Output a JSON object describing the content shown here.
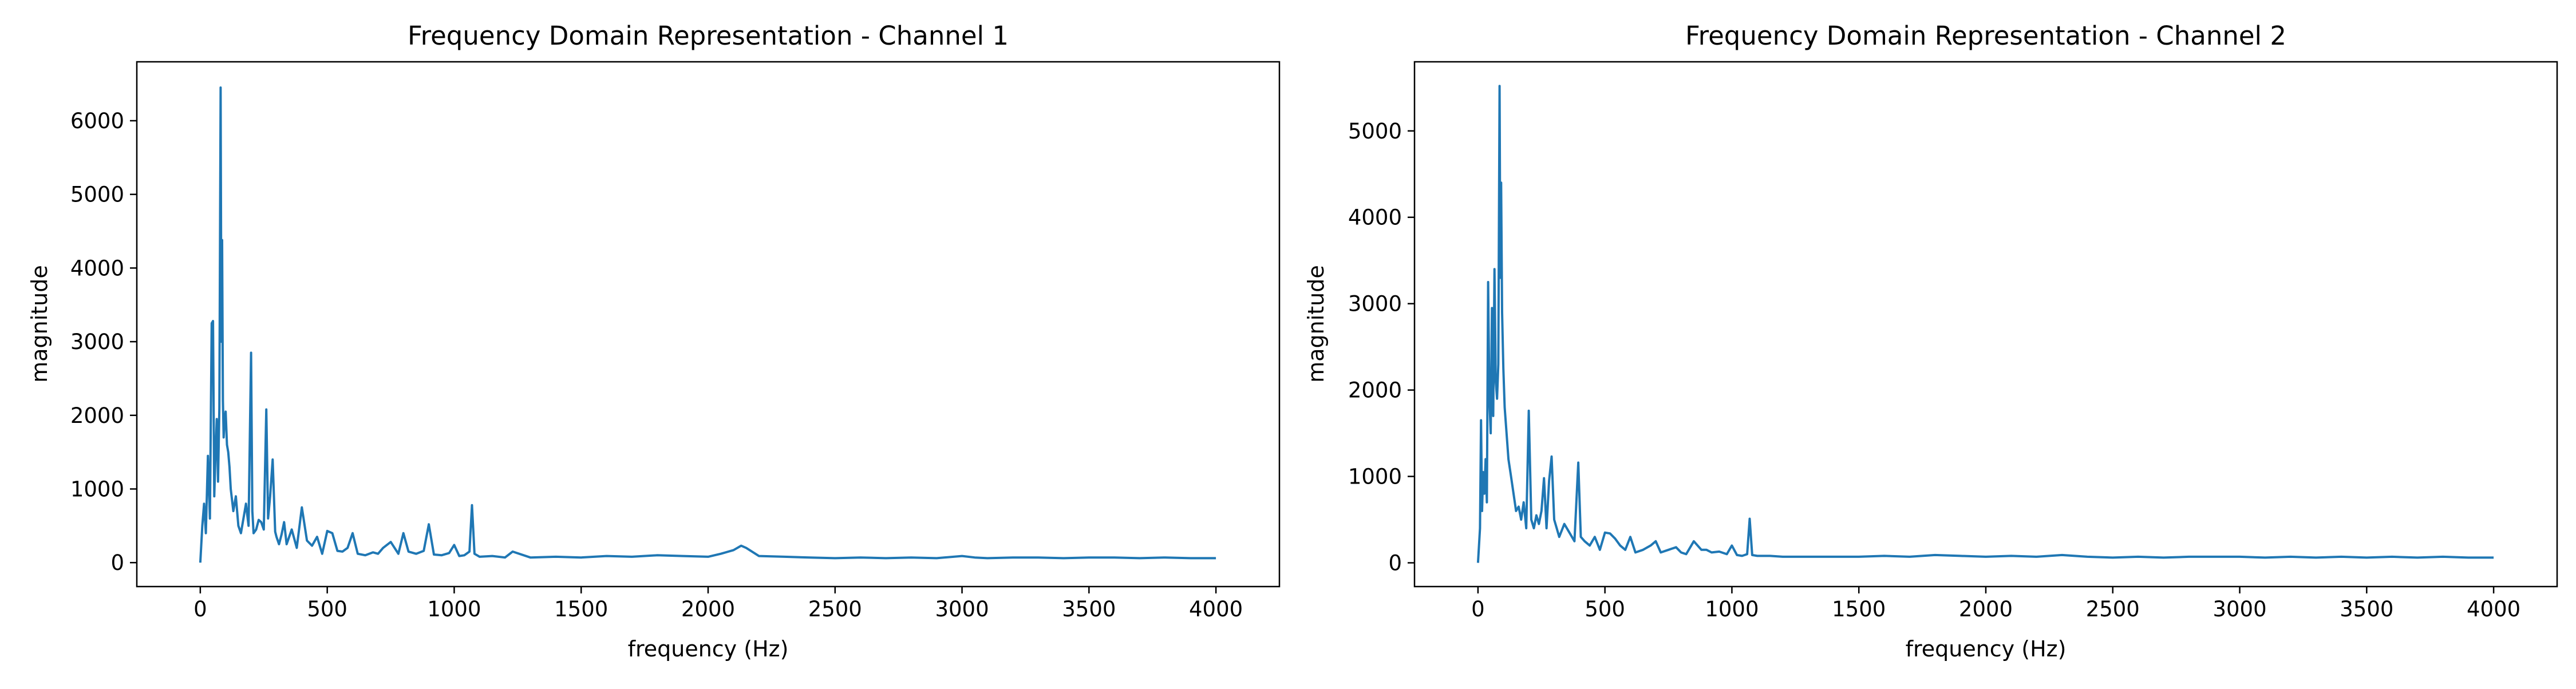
{
  "chart_data": [
    {
      "type": "line",
      "title": "Frequency Domain Representation - Channel 1",
      "xlabel": "frequency (Hz)",
      "ylabel": "magnitude",
      "xlim": [
        -250,
        4250
      ],
      "ylim": [
        -325,
        6800
      ],
      "xticks": [
        0,
        500,
        1000,
        1500,
        2000,
        2500,
        3000,
        3500,
        4000
      ],
      "xtick_labels": [
        "0",
        "500",
        "1000",
        "1500",
        "2000",
        "2500",
        "3000",
        "3500",
        "4000"
      ],
      "yticks": [
        0,
        1000,
        2000,
        3000,
        4000,
        5000,
        6000
      ],
      "ytick_labels": [
        "0",
        "1000",
        "2000",
        "3000",
        "4000",
        "5000",
        "6000"
      ],
      "grid": false,
      "color": "#1f77b4",
      "series": [
        {
          "x": [
            0,
            8,
            15,
            22,
            30,
            38,
            45,
            50,
            55,
            60,
            65,
            70,
            75,
            80,
            83,
            86,
            89,
            92,
            95,
            100,
            105,
            110,
            115,
            120,
            130,
            140,
            150,
            160,
            170,
            180,
            190,
            200,
            205,
            210,
            220,
            230,
            240,
            250,
            260,
            267,
            275,
            285,
            295,
            300,
            310,
            320,
            330,
            340,
            360,
            380,
            400,
            420,
            440,
            460,
            480,
            500,
            520,
            540,
            560,
            580,
            600,
            620,
            650,
            680,
            700,
            720,
            750,
            780,
            800,
            820,
            850,
            880,
            900,
            920,
            950,
            980,
            1000,
            1020,
            1040,
            1060,
            1070,
            1080,
            1100,
            1150,
            1200,
            1230,
            1300,
            1400,
            1500,
            1600,
            1700,
            1800,
            1900,
            2000,
            2050,
            2100,
            2130,
            2150,
            2200,
            2300,
            2400,
            2500,
            2600,
            2700,
            2800,
            2900,
            3000,
            3050,
            3100,
            3200,
            3300,
            3400,
            3500,
            3600,
            3700,
            3800,
            3900,
            4000
          ],
          "y": [
            0,
            500,
            800,
            400,
            1450,
            600,
            3250,
            3280,
            900,
            1500,
            1950,
            1100,
            2100,
            6450,
            3000,
            4380,
            2200,
            1700,
            1900,
            2050,
            1600,
            1500,
            1300,
            1000,
            700,
            900,
            500,
            400,
            600,
            800,
            500,
            2850,
            700,
            400,
            450,
            580,
            550,
            450,
            2080,
            600,
            900,
            1400,
            420,
            350,
            250,
            380,
            550,
            250,
            450,
            200,
            750,
            300,
            230,
            350,
            120,
            430,
            400,
            160,
            150,
            200,
            400,
            120,
            100,
            140,
            120,
            200,
            280,
            120,
            400,
            150,
            120,
            160,
            520,
            110,
            100,
            130,
            240,
            90,
            100,
            150,
            780,
            120,
            80,
            90,
            70,
            150,
            70,
            80,
            70,
            90,
            80,
            100,
            90,
            80,
            120,
            170,
            230,
            200,
            90,
            80,
            70,
            60,
            70,
            60,
            70,
            60,
            90,
            70,
            60,
            70,
            70,
            60,
            70,
            70,
            60,
            70,
            60,
            60
          ]
        }
      ]
    },
    {
      "type": "line",
      "title": "Frequency Domain Representation - Channel 2",
      "xlabel": "frequency (Hz)",
      "ylabel": "magnitude",
      "xlim": [
        -250,
        4250
      ],
      "ylim": [
        -275,
        5800
      ],
      "xticks": [
        0,
        500,
        1000,
        1500,
        2000,
        2500,
        3000,
        3500,
        4000
      ],
      "xtick_labels": [
        "0",
        "500",
        "1000",
        "1500",
        "2000",
        "2500",
        "3000",
        "3500",
        "4000"
      ],
      "yticks": [
        0,
        1000,
        2000,
        3000,
        4000,
        5000
      ],
      "ytick_labels": [
        "0",
        "1000",
        "2000",
        "3000",
        "4000",
        "5000"
      ],
      "grid": false,
      "color": "#1f77b4",
      "series": [
        {
          "x": [
            0,
            8,
            12,
            16,
            20,
            25,
            30,
            35,
            40,
            45,
            50,
            55,
            60,
            65,
            70,
            75,
            80,
            85,
            88,
            91,
            95,
            100,
            105,
            110,
            115,
            120,
            130,
            140,
            150,
            160,
            170,
            180,
            190,
            200,
            210,
            220,
            230,
            240,
            250,
            260,
            270,
            280,
            290,
            300,
            310,
            320,
            340,
            360,
            380,
            395,
            405,
            420,
            440,
            460,
            480,
            500,
            520,
            540,
            560,
            580,
            600,
            620,
            650,
            680,
            700,
            720,
            750,
            780,
            800,
            820,
            850,
            880,
            900,
            920,
            950,
            980,
            1000,
            1020,
            1040,
            1060,
            1070,
            1080,
            1100,
            1150,
            1200,
            1300,
            1400,
            1500,
            1600,
            1700,
            1800,
            1900,
            2000,
            2100,
            2200,
            2300,
            2400,
            2500,
            2600,
            2700,
            2800,
            2900,
            3000,
            3100,
            3200,
            3300,
            3400,
            3500,
            3600,
            3700,
            3800,
            3900,
            4000
          ],
          "y": [
            0,
            400,
            1650,
            600,
            1050,
            800,
            1200,
            700,
            3250,
            1900,
            1500,
            2950,
            1700,
            3400,
            2100,
            1900,
            2300,
            5520,
            3300,
            4400,
            2900,
            2250,
            1800,
            1600,
            1400,
            1200,
            1000,
            800,
            600,
            650,
            500,
            700,
            400,
            1760,
            500,
            400,
            550,
            450,
            600,
            980,
            400,
            950,
            1230,
            500,
            400,
            300,
            450,
            350,
            250,
            1160,
            300,
            250,
            200,
            300,
            150,
            350,
            340,
            280,
            200,
            150,
            300,
            120,
            150,
            200,
            250,
            120,
            150,
            180,
            120,
            100,
            250,
            150,
            150,
            120,
            130,
            100,
            200,
            90,
            80,
            100,
            510,
            90,
            80,
            80,
            70,
            70,
            70,
            70,
            80,
            70,
            90,
            80,
            70,
            80,
            70,
            90,
            70,
            60,
            70,
            60,
            70,
            70,
            70,
            60,
            70,
            60,
            70,
            60,
            70,
            60,
            70,
            60,
            60
          ]
        }
      ]
    }
  ]
}
